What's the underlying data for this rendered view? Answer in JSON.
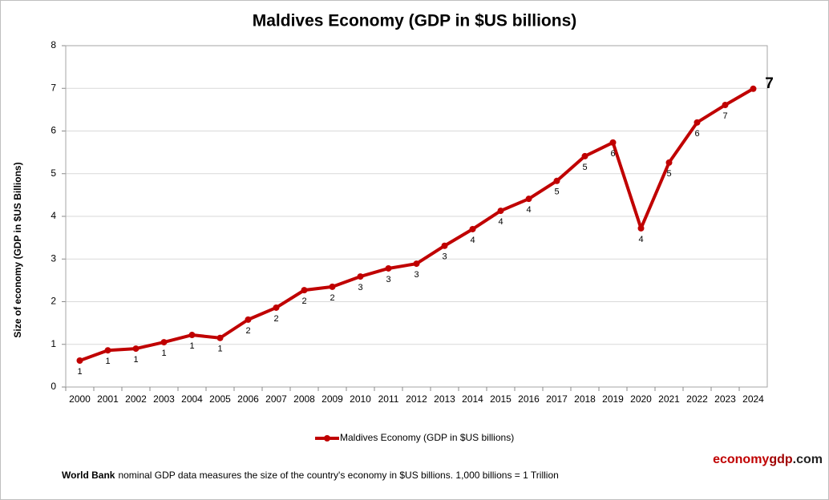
{
  "chart_data": {
    "type": "line",
    "title": "Maldives Economy (GDP in $US billions)",
    "y_label": "Size of economy (GDP in $US Billions)",
    "categories": [
      "2000",
      "2001",
      "2002",
      "2003",
      "2004",
      "2005",
      "2006",
      "2007",
      "2008",
      "2009",
      "2010",
      "2011",
      "2012",
      "2013",
      "2014",
      "2015",
      "2016",
      "2017",
      "2018",
      "2019",
      "2020",
      "2021",
      "2022",
      "2023",
      "2024"
    ],
    "series": [
      {
        "name": "Maldives Economy (GDP in $US billions)",
        "color": "#c00000",
        "values": [
          0.62,
          0.86,
          0.9,
          1.05,
          1.22,
          1.15,
          1.58,
          1.86,
          2.27,
          2.35,
          2.59,
          2.78,
          2.89,
          3.31,
          3.7,
          4.13,
          4.41,
          4.83,
          5.41,
          5.73,
          3.72,
          5.26,
          6.2,
          6.61,
          6.99
        ],
        "value_labels": [
          "1",
          "1",
          "1",
          "1",
          "1",
          "1",
          "2",
          "2",
          "2",
          "2",
          "3",
          "3",
          "3",
          "3",
          "4",
          "4",
          "4",
          "5",
          "5",
          "6",
          "4",
          "5",
          "6",
          "7",
          "7"
        ]
      }
    ],
    "ylim": [
      0,
      8
    ],
    "yticks": [
      0,
      1,
      2,
      3,
      4,
      5,
      6,
      7,
      8
    ],
    "grid": true,
    "legend": "bottom",
    "note": [
      "World Bank",
      "nominal GDP data  measures the size of the country's economy in $US billions. 1,000 billions = 1 Trillion"
    ],
    "brand": [
      "economy",
      "gdp",
      ".com"
    ]
  }
}
